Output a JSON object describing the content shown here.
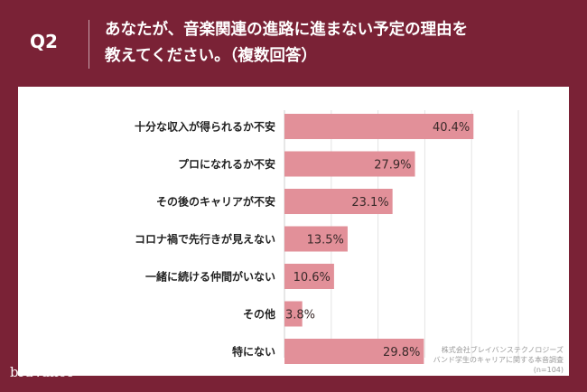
{
  "header": {
    "question_label": "Q2",
    "title_line1": "あなたが、音楽関連の進路に進まない予定の理由を",
    "title_line2": "教えてください。（複数回答）"
  },
  "chart_data": {
    "type": "bar",
    "orientation": "horizontal",
    "categories": [
      "十分な収入が得られるか不安",
      "プロになれるか不安",
      "その後のキャリアが不安",
      "コロナ禍で先行きが見えない",
      "一緒に続ける仲間がいない",
      "その他",
      "特にない"
    ],
    "values": [
      40.4,
      27.9,
      23.1,
      13.5,
      10.6,
      3.8,
      29.8
    ],
    "value_labels": [
      "40.4%",
      "27.9%",
      "23.1%",
      "13.5%",
      "10.6%",
      "3.8%",
      "29.8%"
    ],
    "unit": "%",
    "xlim": [
      0,
      60
    ],
    "grid": true,
    "bar_color": "#e29099"
  },
  "source": {
    "line1": "株式会社ブレイバンステクノロジーズ",
    "line2": "バンド学生のキャリアに関する本音調査",
    "line3": "(n=104)"
  },
  "brand": {
    "logo_text": "braVance"
  },
  "colors": {
    "background": "#7a2236",
    "panel": "#ffffff",
    "bar": "#e29099",
    "text": "#222222"
  }
}
